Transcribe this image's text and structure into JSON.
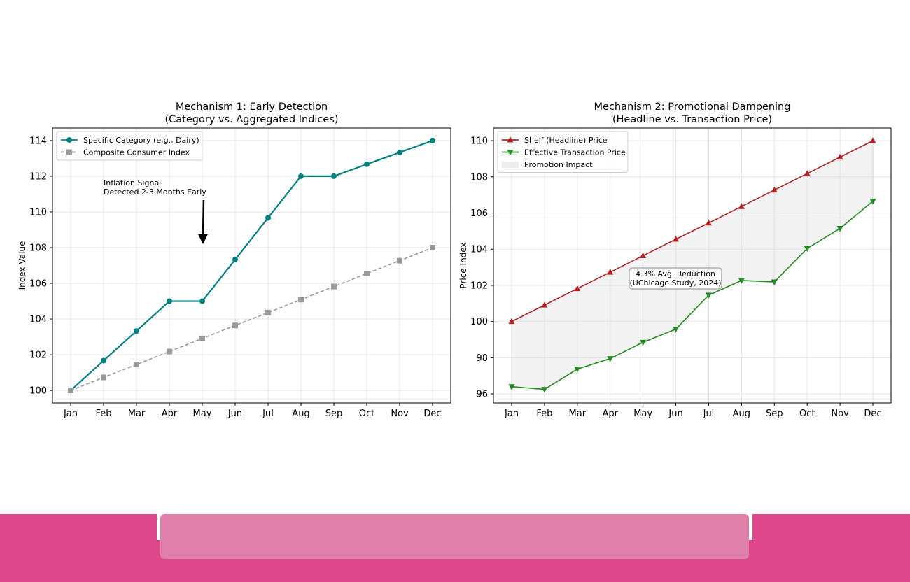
{
  "chart_data": [
    {
      "type": "line",
      "title": "Mechanism 1: Early Detection",
      "subtitle": "(Category vs. Aggregated Indices)",
      "xlabel": "",
      "ylabel": "Index Value",
      "categories": [
        "Jan",
        "Feb",
        "Mar",
        "Apr",
        "May",
        "Jun",
        "Jul",
        "Aug",
        "Sep",
        "Oct",
        "Nov",
        "Dec"
      ],
      "ylim": [
        99.3,
        114.7
      ],
      "yticks": [
        100,
        102,
        104,
        106,
        108,
        110,
        112,
        114
      ],
      "grid": true,
      "legend": "top-left",
      "series": [
        {
          "name": "Specific Category (e.g., Dairy)",
          "color": "#008080",
          "style": "solid",
          "marker": "circle",
          "values": [
            100,
            101.67,
            103.33,
            105,
            105,
            107.33,
            109.67,
            112,
            112,
            112.67,
            113.33,
            114
          ]
        },
        {
          "name": "Composite Consumer Index",
          "color": "#999999",
          "style": "dashed",
          "marker": "square",
          "values": [
            100,
            100.73,
            101.45,
            102.18,
            102.91,
            103.64,
            104.36,
            105.09,
            105.82,
            106.55,
            107.27,
            108
          ]
        }
      ],
      "annotation": {
        "line1": "Inflation Signal",
        "line2": "Detected 2-3 Months Early",
        "arrow_to": {
          "x": "May",
          "y": 108.2
        }
      }
    },
    {
      "type": "line",
      "title": "Mechanism 2: Promotional Dampening",
      "subtitle": "(Headline vs. Transaction Price)",
      "xlabel": "",
      "ylabel": "Price Index",
      "categories": [
        "Jan",
        "Feb",
        "Mar",
        "Apr",
        "May",
        "Jun",
        "Jul",
        "Aug",
        "Sep",
        "Oct",
        "Nov",
        "Dec"
      ],
      "ylim": [
        95.5,
        110.7
      ],
      "yticks": [
        96,
        98,
        100,
        102,
        104,
        106,
        108,
        110
      ],
      "grid": true,
      "legend": "top-left",
      "series": [
        {
          "name": "Shelf (Headline) Price",
          "color": "#b22222",
          "marker": "triangle-up",
          "values": [
            100,
            100.91,
            101.82,
            102.73,
            103.64,
            104.55,
            105.45,
            106.36,
            107.27,
            108.18,
            109.09,
            110
          ]
        },
        {
          "name": "Effective Transaction Price",
          "color": "#228b22",
          "marker": "triangle-down",
          "values": [
            96.4,
            96.25,
            97.37,
            97.95,
            98.85,
            99.58,
            101.46,
            102.27,
            102.19,
            104.04,
            105.15,
            106.65
          ]
        }
      ],
      "fill": {
        "name": "Promotion Impact",
        "color": "#d3d3d3"
      },
      "annotation": {
        "line1": "4.3% Avg. Reduction",
        "line2": "(UChicago Study, 2024)"
      }
    }
  ],
  "footer": {
    "accent": "#e0468a",
    "panel": "#de80aa"
  }
}
